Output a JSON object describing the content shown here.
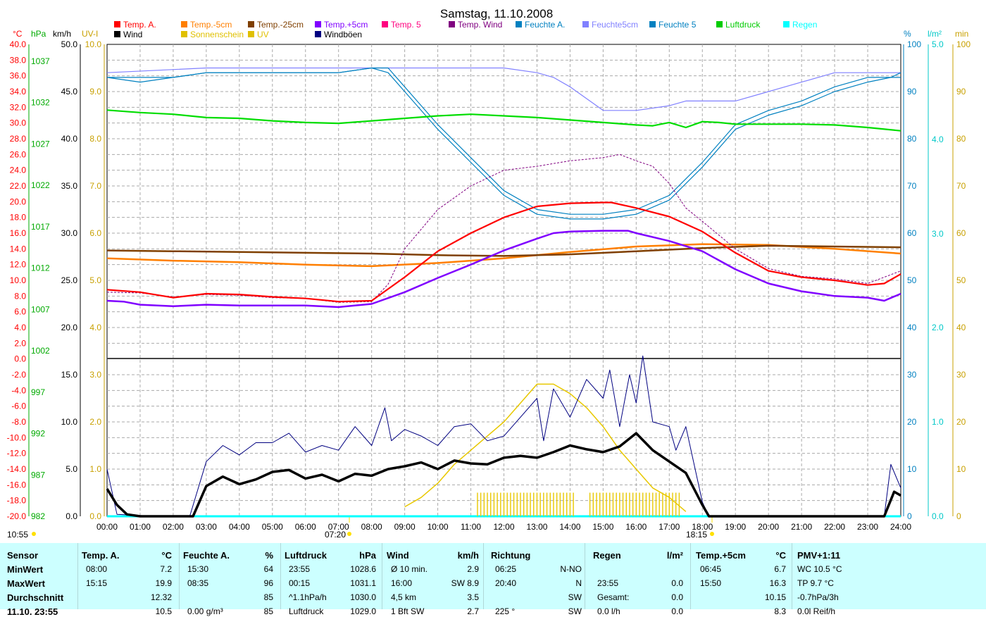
{
  "title": "Samstag, 11.10.2008",
  "legend": [
    {
      "label": "Temp. A.",
      "color": "#ff0000"
    },
    {
      "label": "Temp.-5cm",
      "color": "#ff7f00"
    },
    {
      "label": "Temp.-25cm",
      "color": "#7f3f00"
    },
    {
      "label": "Temp.+5cm",
      "color": "#8000ff"
    },
    {
      "label": "Temp. 5",
      "color": "#ff007f"
    },
    {
      "label": "Temp. Wind",
      "color": "#800080"
    },
    {
      "label": "Feuchte A.",
      "color": "#0080c0"
    },
    {
      "label": "Feuchte5cm",
      "color": "#8080ff"
    },
    {
      "label": "Feuchte 5",
      "color": "#0080c0"
    },
    {
      "label": "Luftdruck",
      "color": "#00cc00"
    },
    {
      "label": "Regen",
      "color": "#00ffff"
    },
    {
      "label": "Wind",
      "color": "#000000"
    },
    {
      "label": "Sonnenschein",
      "color": "#e0c000"
    },
    {
      "label": "UV",
      "color": "#e0c000"
    },
    {
      "label": "Windböen",
      "color": "#000080"
    }
  ],
  "unit_labels": {
    "c": "°C",
    "hpa": "hPa",
    "kmh": "km/h",
    "uvi": "UV-I",
    "pct": "%",
    "lm2": "l/m²",
    "min": "min"
  },
  "left_ticks": {
    "celsius": [
      "40.0",
      "38.0",
      "36.0",
      "34.0",
      "32.0",
      "30.0",
      "28.0",
      "26.0",
      "24.0",
      "22.0",
      "20.0",
      "18.0",
      "16.0",
      "14.0",
      "12.0",
      "10.0",
      "8.0",
      "6.0",
      "4.0",
      "2.0",
      "0.0",
      "-2.0",
      "-4.0",
      "-6.0",
      "-8.0",
      "-10.0",
      "-12.0",
      "-14.0",
      "-16.0",
      "-18.0",
      "-20.0"
    ],
    "hpa": [
      "1037",
      "1032",
      "1027",
      "1022",
      "1017",
      "1012",
      "1007",
      "1002",
      "997",
      "992",
      "987",
      "982"
    ],
    "kmh_top": [
      "50.0",
      "45.0",
      "40.0",
      "35.0",
      "30.0",
      "25.0",
      "20.0"
    ],
    "uvi_top": [
      "10.0",
      "9.0",
      "8.0",
      "7.0",
      "6.0",
      "5.0",
      "4.0"
    ],
    "kmh_bottom": [
      "15.0",
      "10.0",
      "5.0",
      "0.0"
    ],
    "uvi_bottom": [
      "3.0",
      "2.0",
      "1.0",
      "0.0"
    ]
  },
  "right_ticks": {
    "pct": [
      "100",
      "90",
      "80",
      "70",
      "60",
      "50",
      "40"
    ],
    "lm2_top": [
      "5.0",
      "4.0",
      "3.0",
      "2.0"
    ],
    "min": [
      "100",
      "90",
      "80",
      "70",
      "60",
      "50",
      "40",
      "30",
      "20",
      "10",
      "0"
    ],
    "pct_bottom": [
      "30",
      "20",
      "10",
      "0"
    ],
    "lm2_bottom": [
      "1.0",
      "0.0"
    ]
  },
  "x_ticks": [
    "00:00",
    "01:00",
    "02:00",
    "03:00",
    "04:00",
    "05:00",
    "06:00",
    "07:00",
    "08:00",
    "09:00",
    "10:00",
    "11:00",
    "12:00",
    "13:00",
    "14:00",
    "15:00",
    "16:00",
    "17:00",
    "18:00",
    "19:00",
    "20:00",
    "21:00",
    "22:00",
    "23:00",
    "24:00"
  ],
  "sunrise": "07:20",
  "sunset": "18:15",
  "corner_time": "10:55",
  "chart_data": {
    "type": "line",
    "x_unit": "hour",
    "xlim": [
      0,
      24
    ],
    "series": [
      {
        "name": "Temp. A.",
        "axis": "celsius",
        "color": "#ff0000",
        "x": [
          0,
          1,
          2,
          3,
          4,
          5,
          6,
          7,
          8,
          9,
          10,
          11,
          12,
          13,
          14,
          15,
          15.25,
          16,
          17,
          18,
          19,
          20,
          21,
          22,
          23,
          23.5,
          24
        ],
        "values": [
          8.8,
          8.5,
          7.8,
          8.3,
          8.2,
          7.9,
          7.7,
          7.3,
          7.4,
          10.4,
          13.7,
          16.0,
          18.0,
          19.4,
          19.8,
          19.9,
          19.9,
          19.2,
          18.1,
          16.2,
          13.5,
          11.2,
          10.4,
          10.0,
          9.4,
          9.6,
          10.8
        ]
      },
      {
        "name": "Temp. Wind",
        "axis": "celsius",
        "color": "#800080",
        "x": [
          0,
          1,
          2,
          3,
          4,
          5,
          6,
          7,
          8,
          8.5,
          9,
          10,
          11,
          12,
          13,
          14,
          15,
          15.5,
          16,
          16.5,
          17,
          17.5,
          18,
          19,
          20,
          21,
          22,
          23,
          24
        ],
        "values": [
          8.5,
          8.4,
          7.9,
          8.2,
          8.1,
          7.8,
          7.7,
          7.2,
          7.3,
          9.5,
          14.0,
          19.0,
          22.0,
          24.0,
          24.5,
          25.2,
          25.6,
          26.0,
          25.2,
          24.5,
          22.3,
          19.2,
          17.5,
          14.0,
          11.5,
          10.5,
          10.2,
          9.6,
          11.2
        ]
      },
      {
        "name": "Temp.-5cm",
        "axis": "celsius",
        "color": "#ff7f00",
        "x": [
          0,
          2,
          4,
          6,
          8,
          10,
          12,
          14,
          16,
          18,
          20,
          22,
          24
        ],
        "values": [
          12.8,
          12.5,
          12.3,
          12.0,
          11.8,
          12.2,
          12.8,
          13.6,
          14.3,
          14.6,
          14.5,
          14.0,
          13.4
        ]
      },
      {
        "name": "Temp.-25cm",
        "axis": "celsius",
        "color": "#7f3f00",
        "x": [
          0,
          2,
          4,
          6,
          8,
          10,
          12,
          14,
          16,
          18,
          20,
          22,
          24
        ],
        "values": [
          13.8,
          13.7,
          13.6,
          13.5,
          13.4,
          13.2,
          13.1,
          13.3,
          13.7,
          14.1,
          14.4,
          14.3,
          14.2
        ]
      },
      {
        "name": "Temp.+5cm",
        "axis": "celsius",
        "color": "#8000ff",
        "x": [
          0,
          0.5,
          1,
          2,
          3,
          4,
          5,
          6,
          7,
          8,
          9,
          10,
          11,
          12,
          13,
          13.5,
          14,
          15,
          15.75,
          16,
          17,
          18,
          19,
          20,
          21,
          22,
          23,
          23.5,
          24
        ],
        "values": [
          7.4,
          7.3,
          6.9,
          6.7,
          6.9,
          6.8,
          6.8,
          6.8,
          6.6,
          7.0,
          8.5,
          10.3,
          12.0,
          13.8,
          15.3,
          16.0,
          16.2,
          16.3,
          16.3,
          16.0,
          15.0,
          13.7,
          11.4,
          9.6,
          8.6,
          8.0,
          7.8,
          7.4,
          8.3
        ]
      },
      {
        "name": "Feuchte A.",
        "axis": "pct",
        "color": "#0080c0",
        "x": [
          0,
          1,
          2,
          3,
          4,
          5,
          6,
          7,
          8,
          8.5,
          9,
          10,
          11,
          12,
          13,
          14,
          15,
          16,
          17,
          18,
          19,
          20,
          21,
          22,
          23,
          23.7,
          24
        ],
        "values": [
          93,
          93,
          93,
          94,
          94,
          94,
          94,
          94,
          95,
          95,
          91,
          83,
          76,
          69,
          65,
          64,
          64,
          65,
          68,
          75,
          83,
          86,
          88,
          91,
          93,
          93,
          94
        ]
      },
      {
        "name": "Feuchte 5",
        "axis": "pct",
        "color": "#0080c0",
        "x": [
          0,
          1,
          2,
          3,
          4,
          5,
          6,
          7,
          8,
          8.5,
          9,
          10,
          11,
          12,
          13,
          14,
          15,
          16,
          17,
          18,
          19,
          20,
          21,
          22,
          23,
          23.7,
          24
        ],
        "values": [
          93,
          92,
          93,
          94,
          94,
          94,
          94,
          94,
          95,
          94,
          90,
          82,
          75,
          68,
          64,
          63,
          63,
          64,
          67,
          74,
          82,
          85,
          87,
          90,
          92,
          93,
          93
        ]
      },
      {
        "name": "Feuchte5cm",
        "axis": "pct",
        "color": "#8080ff",
        "x": [
          0,
          3,
          5,
          7,
          8.5,
          10,
          12,
          13,
          13.5,
          14,
          15,
          16,
          17,
          17.5,
          18,
          19,
          20,
          21,
          22,
          23,
          24
        ],
        "values": [
          94,
          95,
          95,
          95,
          95,
          95,
          95,
          94,
          93,
          91,
          86,
          86,
          87,
          88,
          88,
          88,
          90,
          92,
          94,
          94,
          94
        ]
      },
      {
        "name": "Luftdruck",
        "axis": "hpa",
        "color": "#00dd00",
        "x": [
          0,
          1,
          2,
          3,
          4,
          5,
          6,
          7,
          8,
          9,
          10,
          11,
          12,
          13,
          14,
          15,
          16,
          16.5,
          17,
          17.5,
          18,
          18.5,
          19,
          20,
          21,
          22,
          23,
          24
        ],
        "values": [
          1031.1,
          1030.8,
          1030.6,
          1030.2,
          1030.1,
          1029.8,
          1029.6,
          1029.5,
          1029.8,
          1030.1,
          1030.4,
          1030.6,
          1030.4,
          1030.2,
          1029.9,
          1029.6,
          1029.3,
          1029.2,
          1029.6,
          1029.0,
          1029.7,
          1029.6,
          1029.4,
          1029.4,
          1029.4,
          1029.3,
          1029.0,
          1028.6
        ]
      },
      {
        "name": "Wind",
        "axis": "kmh_bottom",
        "color": "#000000",
        "x": [
          0,
          0.3,
          0.6,
          1.0,
          2.0,
          2.6,
          3,
          3.5,
          4,
          4.5,
          5,
          5.5,
          6,
          6.5,
          7,
          7.5,
          8,
          8.5,
          9,
          9.5,
          10,
          10.5,
          11,
          11.5,
          12,
          12.5,
          13,
          13.5,
          14,
          14.5,
          15,
          15.5,
          16,
          16.5,
          17,
          17.5,
          18,
          18.2,
          23.5,
          23.8,
          24
        ],
        "values": [
          2.9,
          1.2,
          0.2,
          0,
          0,
          0,
          3.2,
          4.2,
          3.4,
          3.9,
          4.7,
          4.9,
          4.0,
          4.4,
          3.7,
          4.5,
          4.3,
          5.0,
          5.3,
          5.7,
          5.0,
          5.9,
          5.6,
          5.5,
          6.2,
          6.4,
          6.2,
          6.8,
          7.5,
          7.1,
          6.8,
          7.4,
          8.8,
          7.0,
          5.8,
          4.6,
          1.2,
          0,
          0,
          2.6,
          2.2
        ]
      },
      {
        "name": "Windböen",
        "axis": "kmh_bottom",
        "color": "#000080",
        "x": [
          0,
          0.3,
          1.5,
          2.5,
          3,
          3.5,
          4,
          4.5,
          5,
          5.5,
          6,
          6.5,
          7,
          7.5,
          8,
          8.4,
          8.6,
          9,
          9.5,
          10,
          10.5,
          11,
          11.5,
          12,
          12.5,
          13,
          13.2,
          13.5,
          14,
          14.5,
          15,
          15.2,
          15.5,
          15.8,
          16,
          16.2,
          16.5,
          17,
          17.2,
          17.5,
          18,
          18.2,
          23.5,
          23.7,
          24
        ],
        "values": [
          5.0,
          0.2,
          0,
          0,
          5.8,
          7.5,
          6.5,
          7.8,
          7.8,
          8.8,
          6.8,
          7.5,
          7.0,
          9.5,
          7.5,
          11.5,
          8.0,
          9.2,
          8.5,
          7.5,
          9.5,
          9.8,
          8.0,
          8.5,
          10.5,
          12.5,
          8.0,
          13.5,
          10.5,
          14.5,
          12.5,
          15.5,
          9.5,
          15.0,
          12.0,
          17.0,
          10.0,
          9.5,
          7.0,
          9.5,
          1.5,
          0,
          0,
          5.5,
          3.0
        ]
      },
      {
        "name": "Sonnenschein",
        "axis": "min",
        "color": "#e8c800",
        "x": [
          9,
          9.5,
          10,
          10.5,
          11,
          11.5,
          12,
          12.5,
          13,
          13.5,
          14,
          14.5,
          15,
          15.5,
          16,
          16.5,
          17,
          17.5
        ],
        "values": [
          2,
          4,
          7,
          11,
          14,
          17,
          20,
          24,
          28,
          28,
          26,
          23,
          19,
          14,
          10,
          6,
          4,
          1
        ]
      },
      {
        "name": "UV",
        "axis": "uvi_bottom",
        "color": "#e8c800",
        "x": [
          0,
          11,
          11.2,
          17.4,
          17.6,
          24
        ],
        "values": [
          0,
          0,
          0.5,
          0.5,
          0,
          0
        ]
      },
      {
        "name": "Regen",
        "axis": "lm2_bottom",
        "color": "#00ffff",
        "x": [
          0,
          24
        ],
        "values": [
          0,
          0
        ]
      }
    ]
  },
  "stats": {
    "rows": [
      "MinWert",
      "MaxWert",
      "Durchschnitt",
      "11.10. 23:55"
    ],
    "headers": {
      "sensor": "Sensor",
      "temp_a": "Temp. A.",
      "temp_a_u": "°C",
      "feuchte": "Feuchte A.",
      "feuchte_u": "%",
      "druck": "Luftdruck",
      "druck_u": "hPa",
      "wind": "Wind",
      "wind_u": "km/h",
      "richtung": "Richtung",
      "regen": "Regen",
      "regen_u": "l/m²",
      "temp5": "Temp.+5cm",
      "temp5_u": "°C",
      "pmv": "PMV+1:11"
    },
    "temp_a": [
      [
        "08:00",
        "7.2"
      ],
      [
        "15:15",
        "19.9"
      ],
      [
        "",
        "12.32"
      ],
      [
        "",
        "10.5"
      ]
    ],
    "feuchte": [
      [
        "15:30",
        "64"
      ],
      [
        "08:35",
        "96"
      ],
      [
        "",
        "85"
      ],
      [
        "0.00 g/m³",
        "85"
      ]
    ],
    "druck": [
      [
        "23:55",
        "1028.6"
      ],
      [
        "00:15",
        "1031.1"
      ],
      [
        "^1.1hPa/h",
        "1030.0"
      ],
      [
        "Luftdruck",
        "1029.0"
      ]
    ],
    "wind": [
      [
        "Ø 10 min.",
        "2.9"
      ],
      [
        "16:00",
        "SW 8.9"
      ],
      [
        "4,5 km",
        "3.5"
      ],
      [
        "1 Bft SW",
        "2.7"
      ]
    ],
    "richtung": [
      [
        "06:25",
        "N-NO"
      ],
      [
        "20:40",
        "N"
      ],
      [
        "",
        "SW"
      ],
      [
        "225 °",
        "SW"
      ]
    ],
    "regen": [
      [
        "",
        ""
      ],
      [
        "23:55",
        "0.0"
      ],
      [
        "Gesamt:",
        "0.0"
      ],
      [
        "0.0 l/h",
        "0.0"
      ]
    ],
    "temp5": [
      [
        "06:45",
        "6.7"
      ],
      [
        "15:50",
        "16.3"
      ],
      [
        "",
        "10.15"
      ],
      [
        "",
        "8.3"
      ]
    ],
    "pmv": [
      "WC 10.5 °C",
      "TP 9.7 °C",
      "-0.7hPa/3h",
      "0.0l Reif/h"
    ]
  }
}
